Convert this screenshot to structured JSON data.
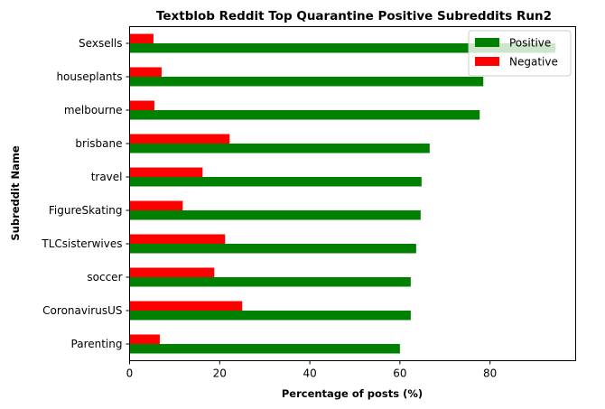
{
  "chart_data": {
    "type": "bar",
    "orientation": "horizontal",
    "title": "Textblob Reddit Top Quarantine Positive Subreddits Run2",
    "xlabel": "Percentage of posts (%)",
    "ylabel": "Subreddit Name",
    "xlim": [
      0,
      99
    ],
    "xticks": [
      0,
      20,
      40,
      60,
      80
    ],
    "grid": false,
    "legend_position": "top-right",
    "categories": [
      "Sexsells",
      "houseplants",
      "melbourne",
      "brisbane",
      "travel",
      "FigureSkating",
      "TLCsisterwives",
      "soccer",
      "CoronavirusUS",
      "Parenting"
    ],
    "series": [
      {
        "name": "Positive",
        "color": "#008000",
        "values": [
          94.5,
          78.5,
          77.7,
          66.6,
          64.8,
          64.6,
          63.6,
          62.4,
          62.4,
          60.0
        ]
      },
      {
        "name": "Negative",
        "color": "#ff0000",
        "values": [
          5.3,
          7.1,
          5.5,
          22.2,
          16.2,
          11.8,
          21.2,
          18.8,
          25.0,
          6.7
        ]
      }
    ]
  }
}
